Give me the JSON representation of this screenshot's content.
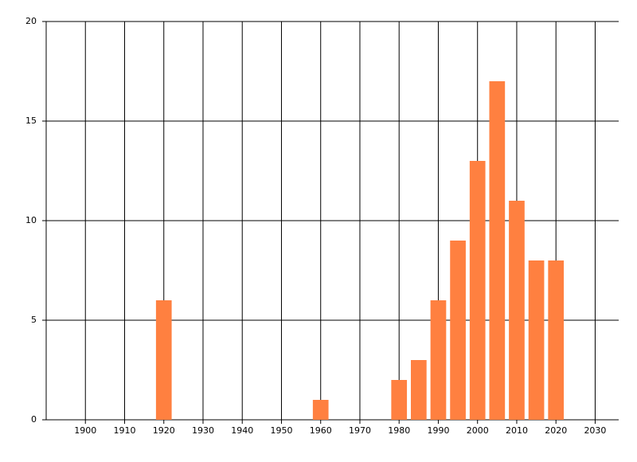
{
  "chart_data": {
    "type": "bar",
    "x": [
      1920,
      1960,
      1980,
      1985,
      1990,
      1995,
      2000,
      2005,
      2010,
      2015,
      2020
    ],
    "values": [
      6,
      1,
      2,
      3,
      6,
      9,
      13,
      17,
      11,
      8,
      8
    ],
    "color": "#ff8040",
    "xlim": [
      1890,
      2036
    ],
    "xticks": [
      1900,
      1910,
      1920,
      1930,
      1940,
      1950,
      1960,
      1970,
      1980,
      1990,
      2000,
      2010,
      2020,
      2030
    ],
    "ylim": [
      0,
      20
    ],
    "yticks": [
      0,
      5,
      10,
      15,
      20
    ],
    "grid": true
  }
}
